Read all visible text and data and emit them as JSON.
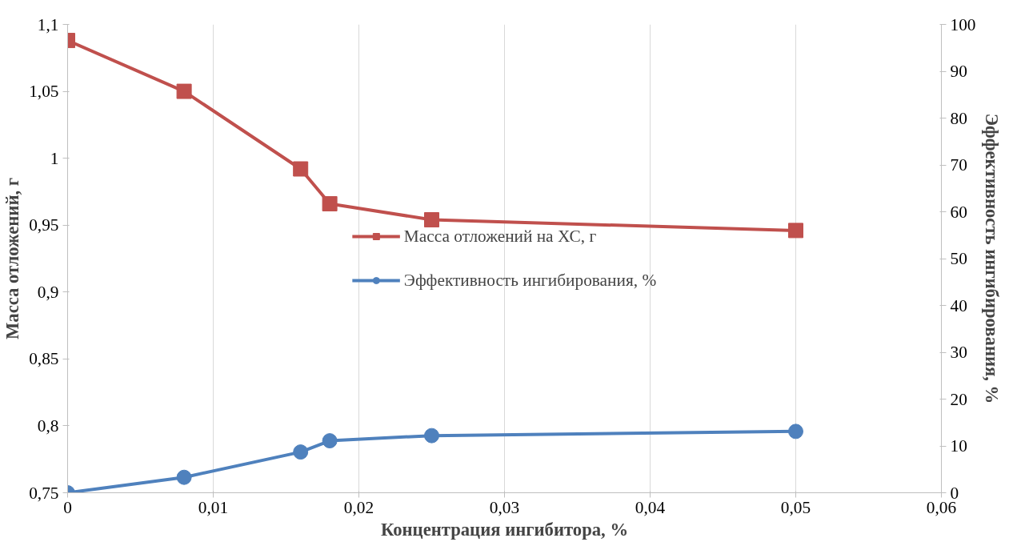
{
  "chart_data": {
    "type": "line",
    "xlabel": "Концентрация ингибитора, %",
    "ylabel": "Масса отложений, г",
    "y2label": "Эффективность ингибирования, %",
    "x": [
      0,
      0.008,
      0.016,
      0.018,
      0.025,
      0.05
    ],
    "series": [
      {
        "name": "Масса отложений на ХС, г",
        "color": "#c0504d",
        "marker": "square",
        "values": [
          1.088,
          1.05,
          0.992,
          0.966,
          0.954,
          0.946
        ]
      },
      {
        "name": "Эффективность ингибирования, %",
        "color": "#4f81bd",
        "marker": "circle",
        "axis": "y2",
        "values": [
          0,
          3.3,
          8.7,
          11.1,
          12.2,
          13.1
        ]
      }
    ],
    "xlim": [
      0,
      0.06
    ],
    "xticks": [
      0,
      {
        "value": 0.01,
        "label": "0,01"
      },
      {
        "value": 0.02,
        "label": "0,02"
      },
      {
        "value": 0.03,
        "label": "0,03"
      },
      {
        "value": 0.04,
        "label": "0,04"
      },
      {
        "value": 0.05,
        "label": "0,05"
      },
      {
        "value": 0.06,
        "label": "0,06"
      }
    ],
    "ylim": [
      0.75,
      1.1
    ],
    "yticks": [
      {
        "value": 0.75,
        "label": "0,75"
      },
      {
        "value": 0.8,
        "label": "0,8"
      },
      {
        "value": 0.85,
        "label": "0,85"
      },
      {
        "value": 0.9,
        "label": "0,9"
      },
      {
        "value": 0.95,
        "label": "0,95"
      },
      1,
      {
        "value": 1.05,
        "label": "1,05"
      },
      {
        "value": 1.1,
        "label": "1,1"
      }
    ],
    "y2lim": [
      0,
      100
    ],
    "y2ticks": [
      0,
      10,
      20,
      30,
      40,
      50,
      60,
      70,
      80,
      90,
      100
    ],
    "grid": "x",
    "legend": "center",
    "line_style": "solid"
  }
}
